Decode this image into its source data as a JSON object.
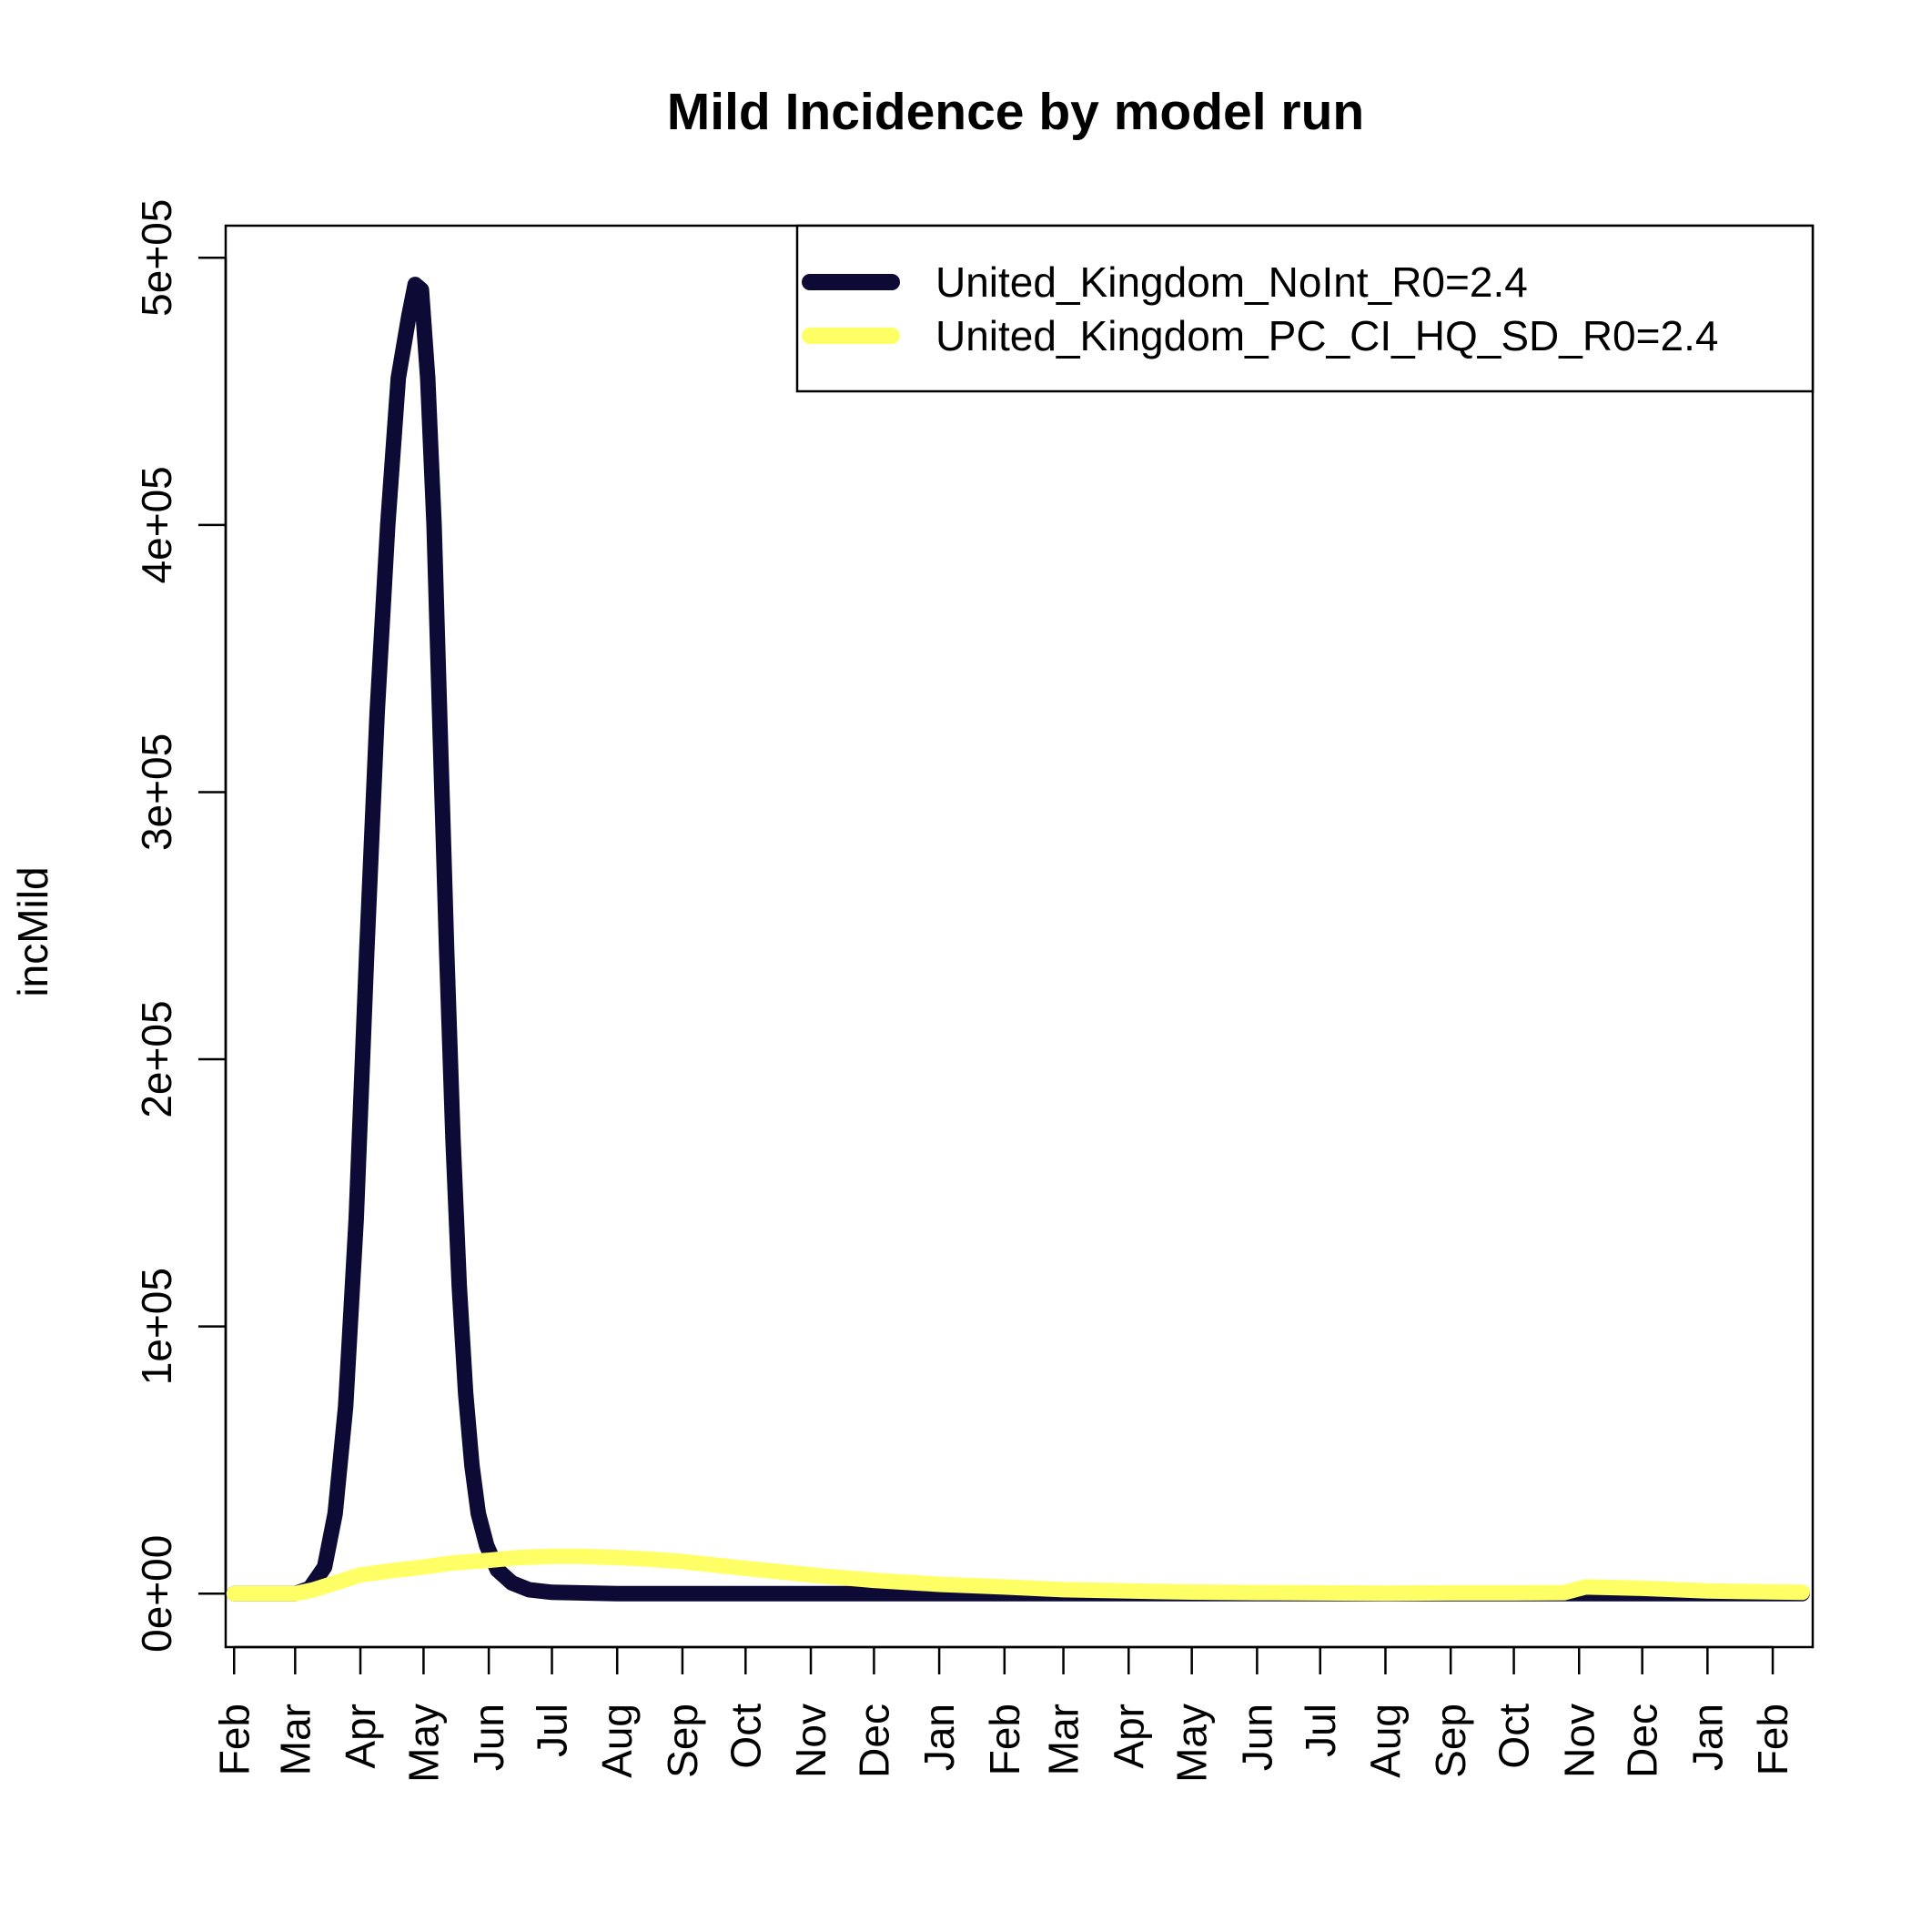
{
  "chart_data": {
    "type": "line",
    "title": "Mild Incidence by model run",
    "xlabel": "",
    "ylabel": "incMild",
    "x_unit": "date",
    "xlim": [
      "2020-01-28",
      "2022-02-20"
    ],
    "ylim": [
      -20000,
      512000
    ],
    "x_ticks": [
      {
        "date": "2020-02-01",
        "label": "Feb"
      },
      {
        "date": "2020-03-01",
        "label": "Mar"
      },
      {
        "date": "2020-04-01",
        "label": "Apr"
      },
      {
        "date": "2020-05-01",
        "label": "May"
      },
      {
        "date": "2020-06-01",
        "label": "Jun"
      },
      {
        "date": "2020-07-01",
        "label": "Jul"
      },
      {
        "date": "2020-08-01",
        "label": "Aug"
      },
      {
        "date": "2020-09-01",
        "label": "Sep"
      },
      {
        "date": "2020-10-01",
        "label": "Oct"
      },
      {
        "date": "2020-11-01",
        "label": "Nov"
      },
      {
        "date": "2020-12-01",
        "label": "Dec"
      },
      {
        "date": "2021-01-01",
        "label": "Jan"
      },
      {
        "date": "2021-02-01",
        "label": "Feb"
      },
      {
        "date": "2021-03-01",
        "label": "Mar"
      },
      {
        "date": "2021-04-01",
        "label": "Apr"
      },
      {
        "date": "2021-05-01",
        "label": "May"
      },
      {
        "date": "2021-06-01",
        "label": "Jun"
      },
      {
        "date": "2021-07-01",
        "label": "Jul"
      },
      {
        "date": "2021-08-01",
        "label": "Aug"
      },
      {
        "date": "2021-09-01",
        "label": "Sep"
      },
      {
        "date": "2021-10-01",
        "label": "Oct"
      },
      {
        "date": "2021-11-01",
        "label": "Nov"
      },
      {
        "date": "2021-12-01",
        "label": "Dec"
      },
      {
        "date": "2022-01-01",
        "label": "Jan"
      },
      {
        "date": "2022-02-01",
        "label": "Feb"
      }
    ],
    "y_ticks": [
      {
        "value": 0,
        "label": "0e+00"
      },
      {
        "value": 100000,
        "label": "1e+05"
      },
      {
        "value": 200000,
        "label": "2e+05"
      },
      {
        "value": 300000,
        "label": "3e+05"
      },
      {
        "value": 400000,
        "label": "4e+05"
      },
      {
        "value": 500000,
        "label": "5e+05"
      }
    ],
    "grid": false,
    "legend_position": "top-right",
    "series": [
      {
        "name": "United_Kingdom_NoInt_R0=2.4",
        "color": "#0d0a35",
        "points": [
          [
            "2020-02-01",
            0
          ],
          [
            "2020-03-01",
            0
          ],
          [
            "2020-03-08",
            2000
          ],
          [
            "2020-03-15",
            10000
          ],
          [
            "2020-03-20",
            30000
          ],
          [
            "2020-03-25",
            70000
          ],
          [
            "2020-03-30",
            140000
          ],
          [
            "2020-04-04",
            240000
          ],
          [
            "2020-04-09",
            330000
          ],
          [
            "2020-04-14",
            400000
          ],
          [
            "2020-04-19",
            455000
          ],
          [
            "2020-04-24",
            478000
          ],
          [
            "2020-04-27",
            490000
          ],
          [
            "2020-04-30",
            488000
          ],
          [
            "2020-05-03",
            455000
          ],
          [
            "2020-05-06",
            400000
          ],
          [
            "2020-05-09",
            320000
          ],
          [
            "2020-05-12",
            240000
          ],
          [
            "2020-05-15",
            170000
          ],
          [
            "2020-05-18",
            115000
          ],
          [
            "2020-05-21",
            75000
          ],
          [
            "2020-05-24",
            48000
          ],
          [
            "2020-05-27",
            30000
          ],
          [
            "2020-05-31",
            18000
          ],
          [
            "2020-06-05",
            9000
          ],
          [
            "2020-06-12",
            4000
          ],
          [
            "2020-06-20",
            1500
          ],
          [
            "2020-07-01",
            500
          ],
          [
            "2020-08-01",
            0
          ],
          [
            "2022-02-15",
            0
          ]
        ]
      },
      {
        "name": "United_Kingdom_PC_CI_HQ_SD_R0=2.4",
        "color": "#ffff66",
        "points": [
          [
            "2020-02-01",
            0
          ],
          [
            "2020-03-01",
            0
          ],
          [
            "2020-03-10",
            1500
          ],
          [
            "2020-03-20",
            4000
          ],
          [
            "2020-04-01",
            7000
          ],
          [
            "2020-04-15",
            8500
          ],
          [
            "2020-05-01",
            10000
          ],
          [
            "2020-05-15",
            11500
          ],
          [
            "2020-06-01",
            12500
          ],
          [
            "2020-06-15",
            13500
          ],
          [
            "2020-07-01",
            14000
          ],
          [
            "2020-07-15",
            14000
          ],
          [
            "2020-08-01",
            13500
          ],
          [
            "2020-08-15",
            13000
          ],
          [
            "2020-09-01",
            12000
          ],
          [
            "2020-10-01",
            9500
          ],
          [
            "2020-11-01",
            7000
          ],
          [
            "2020-12-01",
            5000
          ],
          [
            "2021-01-01",
            3500
          ],
          [
            "2021-02-01",
            2500
          ],
          [
            "2021-03-01",
            1500
          ],
          [
            "2021-04-01",
            1000
          ],
          [
            "2021-05-01",
            600
          ],
          [
            "2021-06-01",
            400
          ],
          [
            "2021-07-01",
            300
          ],
          [
            "2021-08-01",
            200
          ],
          [
            "2021-09-01",
            300
          ],
          [
            "2021-10-01",
            300
          ],
          [
            "2021-10-25",
            400
          ],
          [
            "2021-11-04",
            2500
          ],
          [
            "2021-12-01",
            2000
          ],
          [
            "2022-01-01",
            1000
          ],
          [
            "2022-02-15",
            500
          ]
        ]
      }
    ]
  }
}
